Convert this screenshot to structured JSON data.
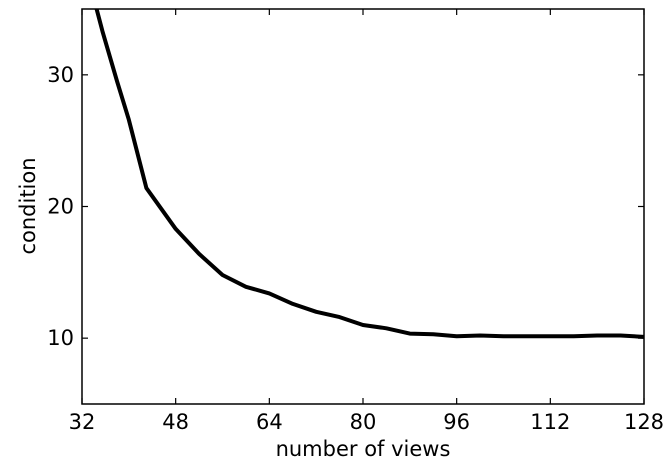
{
  "chart_data": {
    "type": "line",
    "title": "",
    "xlabel": "number of views",
    "ylabel": "condition",
    "xlim": [
      32,
      128
    ],
    "ylim": [
      5,
      35
    ],
    "xticks": [
      32,
      48,
      64,
      80,
      96,
      112,
      128
    ],
    "yticks": [
      10,
      20,
      30
    ],
    "grid": false,
    "legend": "none",
    "series": [
      {
        "color": "#000000",
        "x": [
          34.5,
          35.5,
          38,
          40,
          43,
          48,
          52,
          56,
          60,
          64,
          68,
          72,
          76,
          80,
          84,
          88,
          92,
          96,
          100,
          104,
          108,
          112,
          116,
          120,
          124,
          128
        ],
        "y": [
          35,
          33.3,
          29.5,
          26.6,
          21.4,
          18.3,
          16.4,
          14.8,
          13.9,
          13.4,
          12.6,
          12.0,
          11.6,
          11.0,
          10.75,
          10.35,
          10.3,
          10.15,
          10.2,
          10.15,
          10.15,
          10.15,
          10.15,
          10.2,
          10.2,
          10.1
        ]
      }
    ]
  }
}
